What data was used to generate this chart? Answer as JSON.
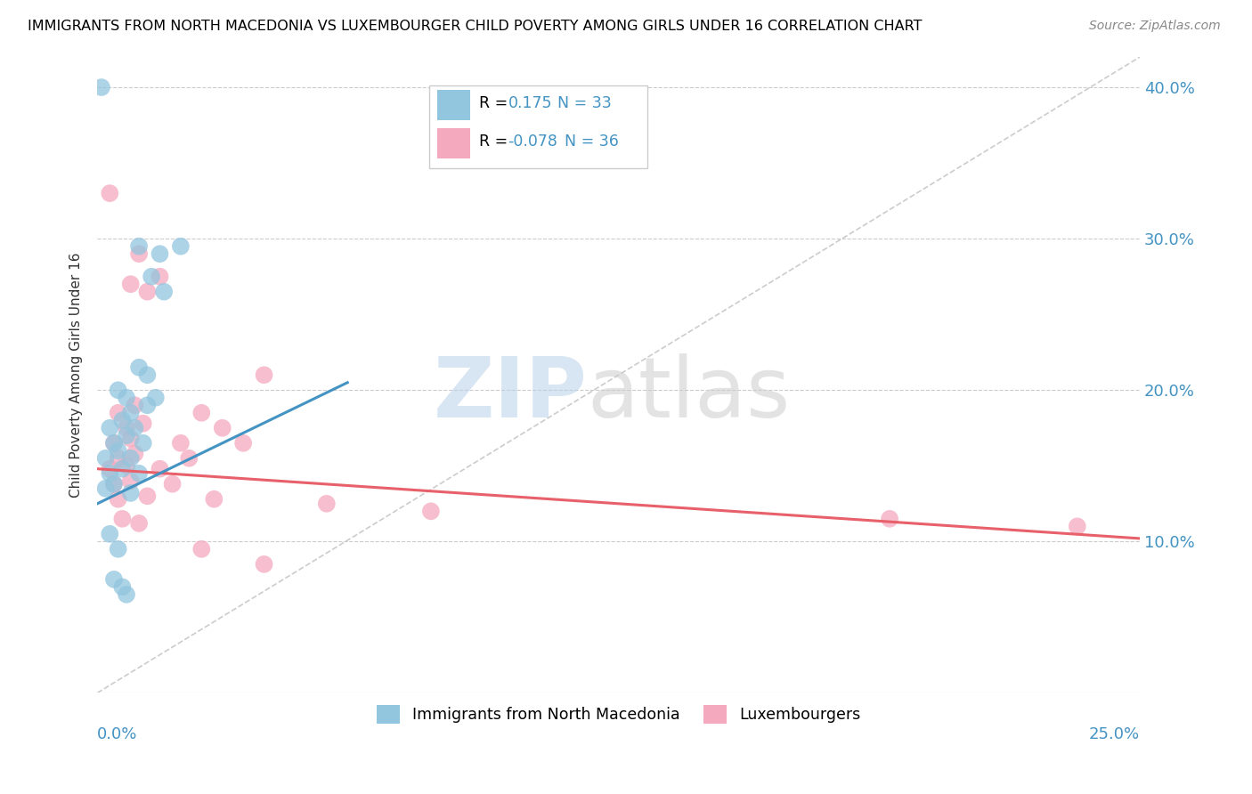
{
  "title": "IMMIGRANTS FROM NORTH MACEDONIA VS LUXEMBOURGER CHILD POVERTY AMONG GIRLS UNDER 16 CORRELATION CHART",
  "source": "Source: ZipAtlas.com",
  "ylabel": "Child Poverty Among Girls Under 16",
  "legend_blue_r": "0.175",
  "legend_blue_n": "N = 33",
  "legend_pink_r": "-0.078",
  "legend_pink_n": "N = 36",
  "blue_color": "#92C5DE",
  "pink_color": "#F4A9BE",
  "blue_line_color": "#4393C3",
  "pink_line_color": "#E8606A",
  "blue_scatter": [
    [
      0.001,
      0.4
    ],
    [
      0.01,
      0.295
    ],
    [
      0.015,
      0.29
    ],
    [
      0.02,
      0.295
    ],
    [
      0.013,
      0.275
    ],
    [
      0.016,
      0.265
    ],
    [
      0.01,
      0.215
    ],
    [
      0.012,
      0.21
    ],
    [
      0.005,
      0.2
    ],
    [
      0.007,
      0.195
    ],
    [
      0.008,
      0.185
    ],
    [
      0.012,
      0.19
    ],
    [
      0.014,
      0.195
    ],
    [
      0.003,
      0.175
    ],
    [
      0.006,
      0.18
    ],
    [
      0.009,
      0.175
    ],
    [
      0.004,
      0.165
    ],
    [
      0.007,
      0.17
    ],
    [
      0.011,
      0.165
    ],
    [
      0.002,
      0.155
    ],
    [
      0.005,
      0.16
    ],
    [
      0.008,
      0.155
    ],
    [
      0.003,
      0.145
    ],
    [
      0.006,
      0.148
    ],
    [
      0.01,
      0.145
    ],
    [
      0.002,
      0.135
    ],
    [
      0.004,
      0.138
    ],
    [
      0.008,
      0.132
    ],
    [
      0.003,
      0.105
    ],
    [
      0.005,
      0.095
    ],
    [
      0.004,
      0.075
    ],
    [
      0.006,
      0.07
    ],
    [
      0.007,
      0.065
    ]
  ],
  "pink_scatter": [
    [
      0.003,
      0.33
    ],
    [
      0.04,
      0.21
    ],
    [
      0.01,
      0.29
    ],
    [
      0.015,
      0.275
    ],
    [
      0.008,
      0.27
    ],
    [
      0.012,
      0.265
    ],
    [
      0.005,
      0.185
    ],
    [
      0.009,
      0.19
    ],
    [
      0.025,
      0.185
    ],
    [
      0.007,
      0.175
    ],
    [
      0.011,
      0.178
    ],
    [
      0.03,
      0.175
    ],
    [
      0.004,
      0.165
    ],
    [
      0.008,
      0.168
    ],
    [
      0.02,
      0.165
    ],
    [
      0.035,
      0.165
    ],
    [
      0.005,
      0.155
    ],
    [
      0.009,
      0.158
    ],
    [
      0.022,
      0.155
    ],
    [
      0.003,
      0.148
    ],
    [
      0.007,
      0.15
    ],
    [
      0.015,
      0.148
    ],
    [
      0.004,
      0.138
    ],
    [
      0.008,
      0.14
    ],
    [
      0.018,
      0.138
    ],
    [
      0.005,
      0.128
    ],
    [
      0.012,
      0.13
    ],
    [
      0.028,
      0.128
    ],
    [
      0.006,
      0.115
    ],
    [
      0.01,
      0.112
    ],
    [
      0.025,
      0.095
    ],
    [
      0.04,
      0.085
    ],
    [
      0.055,
      0.125
    ],
    [
      0.08,
      0.12
    ],
    [
      0.19,
      0.115
    ],
    [
      0.235,
      0.11
    ]
  ],
  "blue_line": [
    [
      0.0,
      0.125
    ],
    [
      0.06,
      0.205
    ]
  ],
  "pink_line": [
    [
      0.0,
      0.148
    ],
    [
      0.25,
      0.102
    ]
  ],
  "dash_line": [
    [
      0.0,
      0.0
    ],
    [
      0.25,
      0.42
    ]
  ],
  "xlim": [
    0.0,
    0.25
  ],
  "ylim": [
    0.0,
    0.42
  ],
  "y_tick_vals": [
    0.1,
    0.2,
    0.3,
    0.4
  ],
  "y_tick_labels": [
    "10.0%",
    "20.0%",
    "30.0%",
    "40.0%"
  ]
}
